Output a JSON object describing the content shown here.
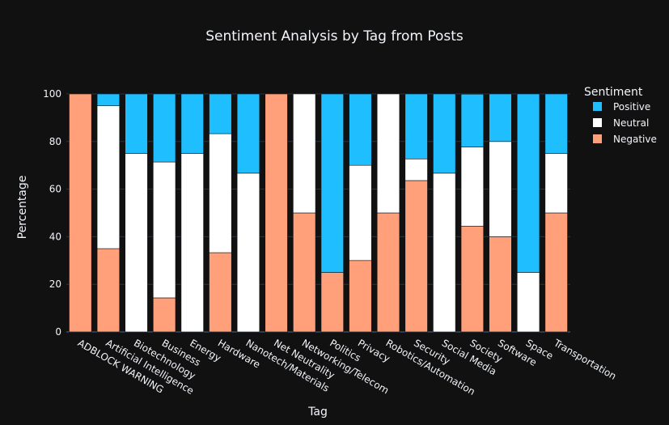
{
  "chart_data": {
    "type": "bar",
    "stacked": true,
    "title": "Sentiment Analysis by Tag from Posts",
    "xlabel": "Tag",
    "ylabel": "Percentage",
    "ylim": [
      0,
      100
    ],
    "yticks": [
      0,
      20,
      40,
      60,
      80,
      100
    ],
    "grid": true,
    "legend_title": "Sentiment",
    "legend_position": "top-right",
    "categories": [
      "ADBLOCK WARNING",
      "Artificial Intelligence",
      "Biotechnology",
      "Business",
      "Energy",
      "Hardware",
      "Nanotech/Materials",
      "Net Neutrality",
      "Networking/Telecom",
      "Politics",
      "Privacy",
      "Robotics/Automation",
      "Security",
      "Social Media",
      "Society",
      "Software",
      "Space",
      "Transportation"
    ],
    "series": [
      {
        "name": "Negative",
        "color": "#FFA07A",
        "values": [
          100,
          35,
          0,
          14.3,
          0,
          33.3,
          0,
          100,
          50,
          25,
          30,
          50,
          63.6,
          0,
          44.4,
          40,
          0,
          50
        ]
      },
      {
        "name": "Neutral",
        "color": "#FFFFFF",
        "values": [
          0,
          60,
          75,
          57.1,
          75,
          50,
          66.7,
          0,
          50,
          0,
          40,
          50,
          9.1,
          66.7,
          33.3,
          40,
          25,
          25
        ]
      },
      {
        "name": "Positive",
        "color": "#1FBFFF",
        "values": [
          0,
          5,
          25,
          28.6,
          25,
          16.7,
          33.3,
          0,
          0,
          75,
          30,
          0,
          27.3,
          33.3,
          22.2,
          20,
          75,
          25
        ]
      }
    ],
    "legend_order": [
      "Positive",
      "Neutral",
      "Negative"
    ],
    "colors": {
      "background": "#111111",
      "grid": "#283442",
      "text": "#f2f5fa",
      "bar_outline": "#111111"
    }
  }
}
